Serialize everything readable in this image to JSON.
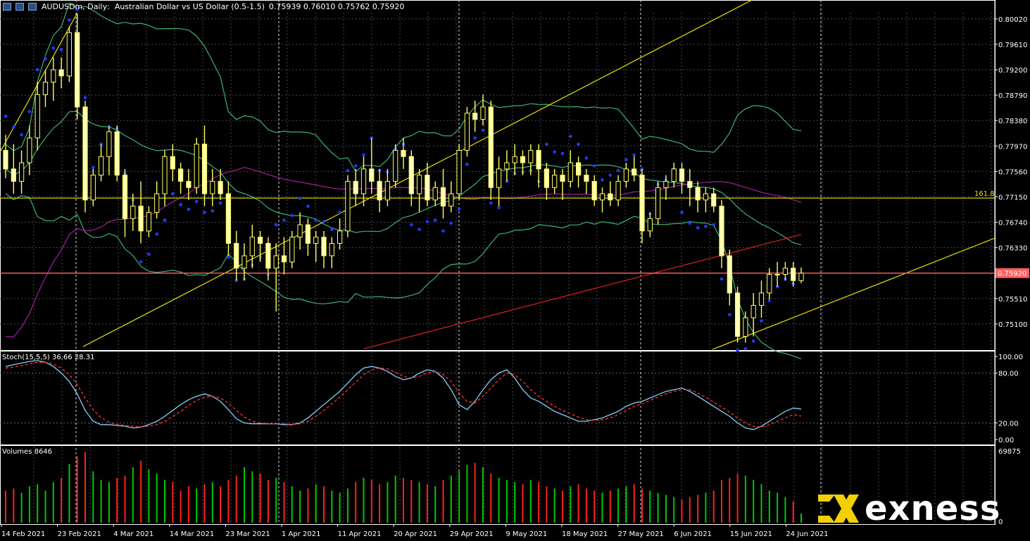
{
  "header": {
    "symbol": "AUDUSDm",
    "timeframe": "Daily",
    "description": "Australian Dollar vs US Dollar (0.5-1.5)",
    "ohlc": "0.75939 0.76010 0.75762 0.75920",
    "icons": [
      "window-icon",
      "chart-icon",
      "minimize-icon"
    ]
  },
  "logo": {
    "word": "exness",
    "color": "#f5d000"
  },
  "chart_data": [
    {
      "type": "candlestick",
      "ylim": [
        0.7469,
        0.8012
      ],
      "y_ticks": [
        "0.80020",
        "0.79610",
        "0.79200",
        "0.78790",
        "0.78380",
        "0.77970",
        "0.77560",
        "0.77150",
        "0.76740",
        "0.76330",
        "0.75920",
        "0.75510",
        "0.75100"
      ],
      "y_tick_values": [
        0.8002,
        0.7961,
        0.792,
        0.7879,
        0.7838,
        0.7797,
        0.7756,
        0.7715,
        0.7674,
        0.7633,
        0.7592,
        0.7551,
        0.751
      ],
      "x_labels": [
        "14 Feb 2021",
        "23 Feb 2021",
        "4 Mar 2021",
        "14 Mar 2021",
        "23 Mar 2021",
        "1 Apr 2021",
        "11 Apr 2021",
        "20 Apr 2021",
        "29 Apr 2021",
        "9 May 2021",
        "18 May 2021",
        "27 May 2021",
        "6 Jun 2021",
        "15 Jun 2021",
        "24 Jun 2021"
      ],
      "last_price": "0.75920",
      "last_price_value": 0.7592,
      "fib_level": {
        "label": "161.8",
        "value": 0.7713
      },
      "candles": [
        [
          0.779,
          0.7815,
          0.7745,
          0.776
        ],
        [
          0.776,
          0.78,
          0.772,
          0.774
        ],
        [
          0.774,
          0.779,
          0.772,
          0.777
        ],
        [
          0.777,
          0.783,
          0.775,
          0.781
        ],
        [
          0.781,
          0.79,
          0.779,
          0.788
        ],
        [
          0.788,
          0.792,
          0.786,
          0.79
        ],
        [
          0.79,
          0.794,
          0.787,
          0.792
        ],
        [
          0.792,
          0.794,
          0.789,
          0.791
        ],
        [
          0.791,
          0.799,
          0.79,
          0.798
        ],
        [
          0.798,
          0.801,
          0.784,
          0.786
        ],
        [
          0.786,
          0.787,
          0.769,
          0.771
        ],
        [
          0.771,
          0.776,
          0.77,
          0.775
        ],
        [
          0.775,
          0.78,
          0.774,
          0.778
        ],
        [
          0.778,
          0.783,
          0.775,
          0.782
        ],
        [
          0.782,
          0.783,
          0.774,
          0.775
        ],
        [
          0.775,
          0.776,
          0.765,
          0.768
        ],
        [
          0.768,
          0.772,
          0.766,
          0.77
        ],
        [
          0.77,
          0.774,
          0.764,
          0.766
        ],
        [
          0.766,
          0.77,
          0.765,
          0.769
        ],
        [
          0.769,
          0.774,
          0.768,
          0.772
        ],
        [
          0.772,
          0.779,
          0.77,
          0.778
        ],
        [
          0.778,
          0.78,
          0.774,
          0.776
        ],
        [
          0.776,
          0.777,
          0.772,
          0.774
        ],
        [
          0.774,
          0.776,
          0.771,
          0.773
        ],
        [
          0.773,
          0.781,
          0.772,
          0.78
        ],
        [
          0.78,
          0.783,
          0.77,
          0.772
        ],
        [
          0.772,
          0.776,
          0.77,
          0.774
        ],
        [
          0.774,
          0.776,
          0.771,
          0.772
        ],
        [
          0.772,
          0.774,
          0.762,
          0.764
        ],
        [
          0.764,
          0.766,
          0.758,
          0.76
        ],
        [
          0.76,
          0.764,
          0.758,
          0.762
        ],
        [
          0.762,
          0.767,
          0.76,
          0.765
        ],
        [
          0.765,
          0.766,
          0.761,
          0.764
        ],
        [
          0.764,
          0.765,
          0.758,
          0.76
        ],
        [
          0.76,
          0.764,
          0.753,
          0.762
        ],
        [
          0.762,
          0.765,
          0.759,
          0.761
        ],
        [
          0.761,
          0.766,
          0.76,
          0.765
        ],
        [
          0.765,
          0.769,
          0.763,
          0.767
        ],
        [
          0.767,
          0.768,
          0.762,
          0.764
        ],
        [
          0.764,
          0.766,
          0.761,
          0.765
        ],
        [
          0.765,
          0.766,
          0.76,
          0.762
        ],
        [
          0.762,
          0.765,
          0.76,
          0.764
        ],
        [
          0.764,
          0.768,
          0.763,
          0.766
        ],
        [
          0.766,
          0.775,
          0.765,
          0.774
        ],
        [
          0.774,
          0.776,
          0.77,
          0.772
        ],
        [
          0.772,
          0.778,
          0.77,
          0.776
        ],
        [
          0.776,
          0.781,
          0.772,
          0.774
        ],
        [
          0.774,
          0.776,
          0.769,
          0.771
        ],
        [
          0.771,
          0.776,
          0.77,
          0.774
        ],
        [
          0.774,
          0.78,
          0.773,
          0.779
        ],
        [
          0.779,
          0.781,
          0.776,
          0.778
        ],
        [
          0.778,
          0.779,
          0.77,
          0.772
        ],
        [
          0.772,
          0.776,
          0.769,
          0.775
        ],
        [
          0.775,
          0.777,
          0.77,
          0.771
        ],
        [
          0.771,
          0.774,
          0.77,
          0.773
        ],
        [
          0.773,
          0.776,
          0.768,
          0.77
        ],
        [
          0.77,
          0.774,
          0.769,
          0.772
        ],
        [
          0.772,
          0.78,
          0.771,
          0.779
        ],
        [
          0.779,
          0.786,
          0.778,
          0.785
        ],
        [
          0.785,
          0.787,
          0.782,
          0.784
        ],
        [
          0.784,
          0.788,
          0.783,
          0.786
        ],
        [
          0.786,
          0.787,
          0.771,
          0.773
        ],
        [
          0.773,
          0.778,
          0.77,
          0.776
        ],
        [
          0.776,
          0.779,
          0.774,
          0.777
        ],
        [
          0.777,
          0.78,
          0.775,
          0.778
        ],
        [
          0.778,
          0.779,
          0.775,
          0.777
        ],
        [
          0.777,
          0.78,
          0.775,
          0.779
        ],
        [
          0.779,
          0.78,
          0.773,
          0.776
        ],
        [
          0.776,
          0.777,
          0.771,
          0.773
        ],
        [
          0.773,
          0.776,
          0.772,
          0.775
        ],
        [
          0.775,
          0.776,
          0.771,
          0.774
        ],
        [
          0.774,
          0.779,
          0.773,
          0.777
        ],
        [
          0.777,
          0.778,
          0.773,
          0.775
        ],
        [
          0.775,
          0.776,
          0.772,
          0.774
        ],
        [
          0.774,
          0.775,
          0.77,
          0.771
        ],
        [
          0.771,
          0.773,
          0.769,
          0.772
        ],
        [
          0.772,
          0.774,
          0.77,
          0.771
        ],
        [
          0.771,
          0.775,
          0.77,
          0.774
        ],
        [
          0.774,
          0.777,
          0.773,
          0.776
        ],
        [
          0.776,
          0.778,
          0.774,
          0.775
        ],
        [
          0.775,
          0.776,
          0.764,
          0.766
        ],
        [
          0.766,
          0.769,
          0.765,
          0.768
        ],
        [
          0.768,
          0.774,
          0.767,
          0.773
        ],
        [
          0.773,
          0.775,
          0.771,
          0.774
        ],
        [
          0.774,
          0.777,
          0.773,
          0.776
        ],
        [
          0.776,
          0.777,
          0.772,
          0.774
        ],
        [
          0.774,
          0.776,
          0.77,
          0.773
        ],
        [
          0.773,
          0.774,
          0.769,
          0.771
        ],
        [
          0.771,
          0.773,
          0.769,
          0.772
        ],
        [
          0.772,
          0.773,
          0.769,
          0.77
        ],
        [
          0.77,
          0.771,
          0.76,
          0.762
        ],
        [
          0.762,
          0.763,
          0.754,
          0.756
        ],
        [
          0.756,
          0.757,
          0.748,
          0.749
        ],
        [
          0.749,
          0.753,
          0.748,
          0.752
        ],
        [
          0.752,
          0.756,
          0.749,
          0.754
        ],
        [
          0.754,
          0.758,
          0.752,
          0.756
        ],
        [
          0.756,
          0.76,
          0.755,
          0.759
        ],
        [
          0.759,
          0.761,
          0.757,
          0.759
        ],
        [
          0.759,
          0.761,
          0.758,
          0.76
        ],
        [
          0.76,
          0.761,
          0.757,
          0.758
        ],
        [
          0.758,
          0.7601,
          0.7576,
          0.7592
        ]
      ]
    },
    {
      "type": "line",
      "name": "Stoch(15,5,5)",
      "label": "Stoch(15,5,5) 36.66 28.31",
      "ylim": [
        0,
        100
      ],
      "y_ticks": [
        "100.00",
        "80.00",
        "20.00",
        "0.00"
      ],
      "y_tick_values": [
        100,
        80,
        20,
        0
      ],
      "series": [
        {
          "name": "main",
          "color": "#87cefa",
          "values": [
            88,
            90,
            92,
            94,
            95,
            93,
            88,
            80,
            70,
            55,
            35,
            22,
            18,
            18,
            17,
            16,
            14,
            15,
            18,
            22,
            28,
            35,
            42,
            48,
            52,
            55,
            52,
            46,
            36,
            25,
            20,
            19,
            19,
            19,
            19,
            18,
            18,
            20,
            26,
            34,
            42,
            50,
            58,
            68,
            78,
            86,
            88,
            86,
            82,
            76,
            72,
            74,
            80,
            84,
            82,
            74,
            60,
            42,
            36,
            46,
            60,
            72,
            80,
            84,
            74,
            60,
            50,
            46,
            40,
            34,
            30,
            26,
            22,
            22,
            24,
            26,
            30,
            34,
            40,
            44,
            46,
            50,
            54,
            58,
            60,
            62,
            58,
            52,
            46,
            40,
            34,
            28,
            20,
            14,
            12,
            16,
            22,
            28,
            34,
            38,
            36.66
          ]
        },
        {
          "name": "signal",
          "color": "#ff3030",
          "values": [
            86,
            87,
            89,
            91,
            93,
            93,
            91,
            86,
            78,
            66,
            50,
            36,
            26,
            21,
            18,
            17,
            16,
            15,
            16,
            18,
            22,
            28,
            34,
            41,
            47,
            51,
            52,
            50,
            44,
            35,
            27,
            22,
            20,
            19,
            19,
            19,
            18,
            19,
            22,
            28,
            35,
            43,
            51,
            60,
            69,
            78,
            84,
            86,
            85,
            81,
            76,
            74,
            76,
            80,
            82,
            78,
            70,
            56,
            46,
            44,
            52,
            62,
            72,
            80,
            78,
            70,
            60,
            52,
            46,
            40,
            35,
            31,
            27,
            24,
            23,
            24,
            26,
            30,
            35,
            40,
            43,
            47,
            51,
            55,
            58,
            60,
            60,
            56,
            51,
            45,
            39,
            33,
            26,
            20,
            16,
            15,
            18,
            22,
            26,
            30,
            28.31
          ]
        }
      ]
    },
    {
      "type": "bar",
      "name": "Volumes",
      "label": "Volumes 8646",
      "ylim": [
        0,
        69875
      ],
      "y_ticks": [
        "69875",
        "0"
      ],
      "y_tick_values": [
        69875,
        0
      ],
      "values": [
        30000,
        32000,
        28000,
        34000,
        36000,
        30000,
        38000,
        42000,
        55000,
        62000,
        66000,
        48000,
        40000,
        38000,
        42000,
        44000,
        52000,
        58000,
        50000,
        46000,
        40000,
        38000,
        30000,
        34000,
        32000,
        36000,
        38000,
        34000,
        40000,
        44000,
        52000,
        48000,
        46000,
        40000,
        42000,
        38000,
        34000,
        30000,
        32000,
        36000,
        34000,
        30000,
        28000,
        32000,
        38000,
        42000,
        40000,
        36000,
        38000,
        44000,
        42000,
        40000,
        38000,
        36000,
        34000,
        40000,
        44000,
        48000,
        54000,
        56000,
        52000,
        46000,
        42000,
        40000,
        38000,
        36000,
        40000,
        38000,
        34000,
        32000,
        30000,
        34000,
        36000,
        32000,
        30000,
        28000,
        30000,
        32000,
        34000,
        36000,
        32000,
        30000,
        28000,
        26000,
        24000,
        22000,
        24000,
        26000,
        28000,
        30000,
        40000,
        42000,
        46000,
        44000,
        40000,
        36000,
        30000,
        28000,
        24000,
        20000,
        8646
      ],
      "up_color": "#00c800",
      "down_color": "#ff2020"
    }
  ]
}
